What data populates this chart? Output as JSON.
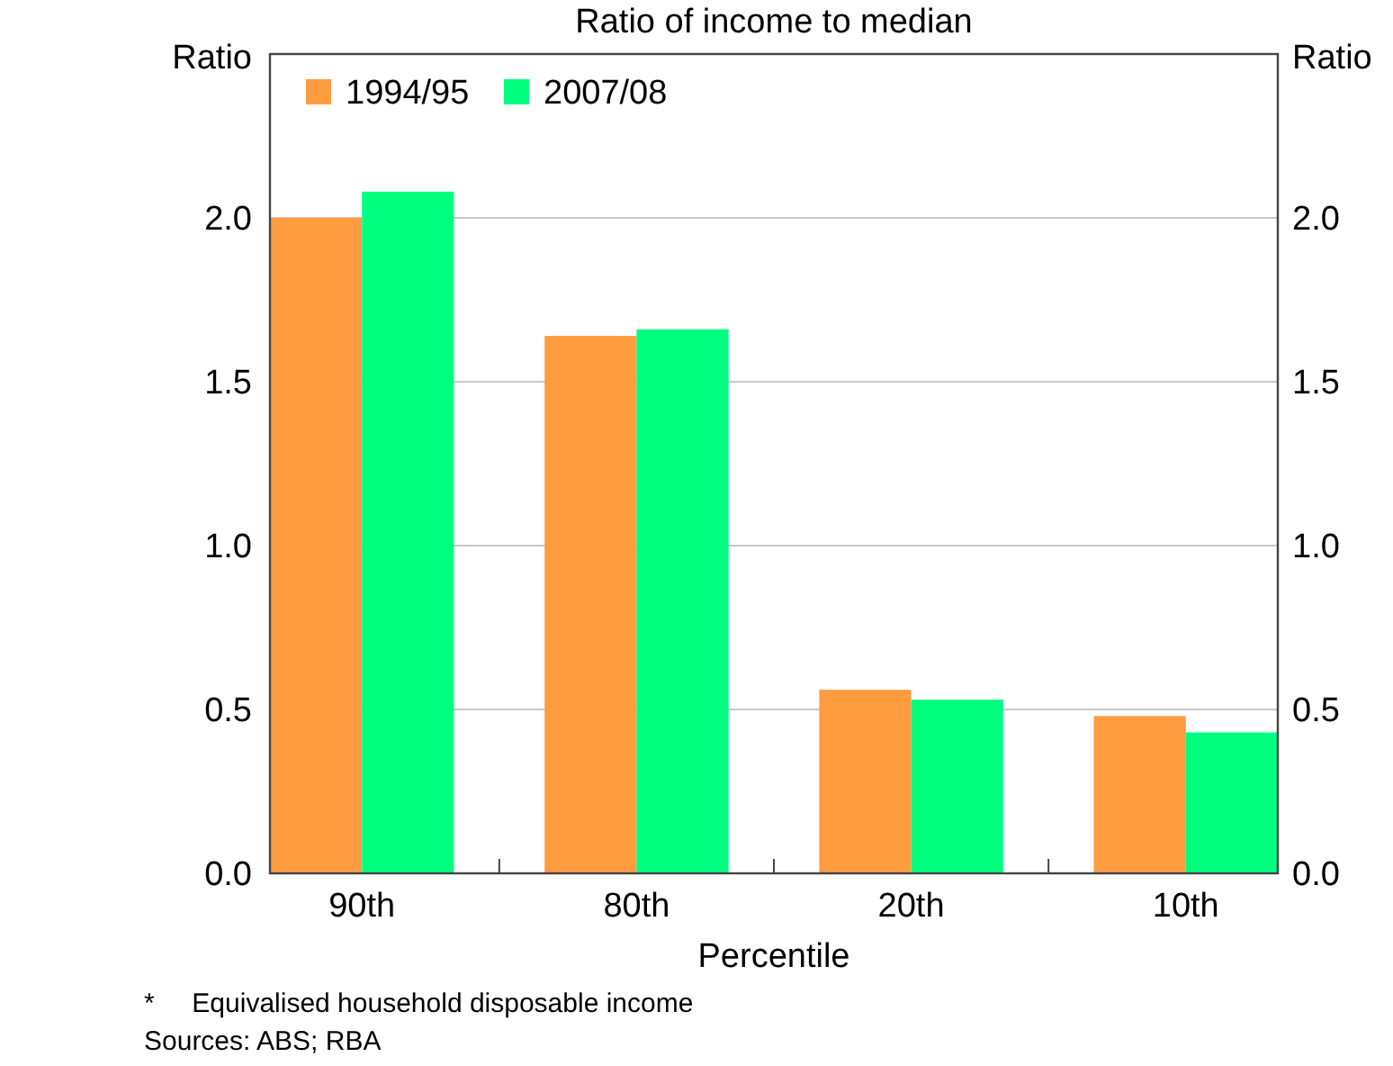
{
  "chart_data": {
    "type": "bar",
    "title": "Ratio of income to median",
    "xlabel": "Percentile",
    "ylabel": "Ratio",
    "y2label": "Ratio",
    "categories": [
      "90th",
      "80th",
      "20th",
      "10th"
    ],
    "series": [
      {
        "name": "1994/95",
        "color": "#ff9c40",
        "values": [
          2.0,
          1.64,
          0.56,
          0.48
        ]
      },
      {
        "name": "2007/08",
        "color": "#00ff7f",
        "values": [
          2.08,
          1.66,
          0.53,
          0.43
        ]
      }
    ],
    "ylim": [
      0,
      2.5
    ],
    "yticks": [
      {
        "value": 0,
        "label": "0.0"
      },
      {
        "value": 0.5,
        "label": "0.5"
      },
      {
        "value": 1,
        "label": "1.0"
      },
      {
        "value": 1.5,
        "label": "1.5"
      },
      {
        "value": 2,
        "label": "2.0"
      }
    ],
    "y2lim": [
      0,
      2.5
    ],
    "y2ticks": [
      {
        "value": 0,
        "label": "0.0"
      },
      {
        "value": 0.5,
        "label": "0.5"
      },
      {
        "value": 1,
        "label": "1.0"
      },
      {
        "value": 1.5,
        "label": "1.5"
      },
      {
        "value": 2,
        "label": "2.0"
      }
    ],
    "grid": "y",
    "legend": "top left",
    "annotations": [
      "*     Equivalised household disposable income",
      "Sources: ABS; RBA"
    ]
  }
}
